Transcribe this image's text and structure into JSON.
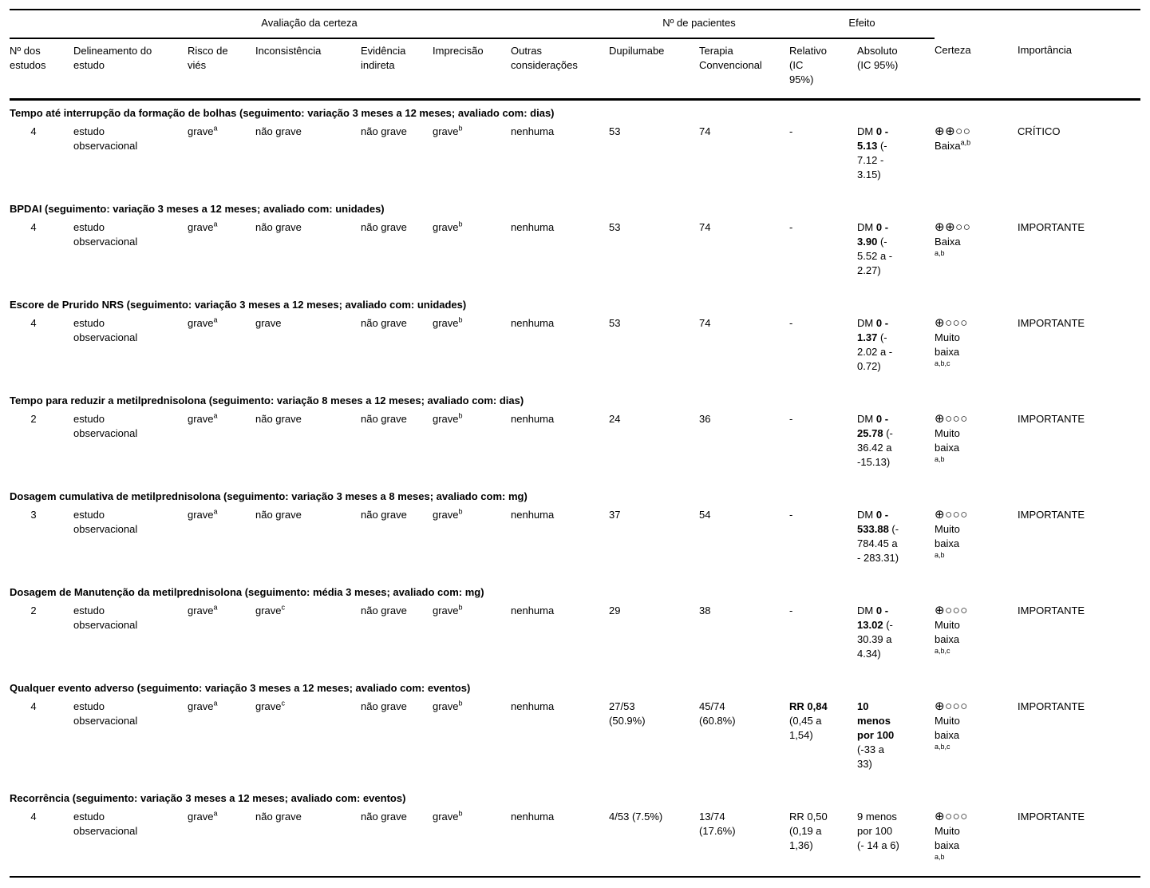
{
  "table": {
    "group_headers": {
      "certainty": "Avaliação da certeza",
      "patients": "Nº de pacientes",
      "effect": "Efeito"
    },
    "column_headers": {
      "n_studies": "Nº dos estudos",
      "design": "Delineamento do estudo",
      "risk_of_bias": "Risco de viés",
      "inconsistency": "Inconsistência",
      "indirectness": "Evidência indireta",
      "imprecision": "Imprecisão",
      "other": "Outras considerações",
      "dupilumab": "Dupilumabe",
      "conventional": "Terapia Convencional",
      "relative": "Relativo (IC 95%)",
      "absolute": "Absoluto (IC 95%)",
      "certainty": "Certeza",
      "importance": "Importância"
    },
    "sections": [
      {
        "title": "Tempo até interrupção da formação de bolhas (seguimento: variação 3 meses a 12 meses; avaliado com: dias)",
        "row": {
          "n_studies": "4",
          "design": "estudo observacional",
          "risk_of_bias": {
            "text": "grave",
            "sup": "a"
          },
          "inconsistency": {
            "text": "não grave",
            "sup": ""
          },
          "indirectness": {
            "text": "não grave",
            "sup": ""
          },
          "imprecision": {
            "text": "grave",
            "sup": "b"
          },
          "other": "nenhuma",
          "dupilumab": "53",
          "conventional": "74",
          "relative": {
            "bold": "",
            "rest": "-"
          },
          "absolute": {
            "prefix": "DM ",
            "bold": "0 - 5.13",
            "rest": " (- 7.12 - 3.15)"
          },
          "certainty": {
            "symbols": "⊕⊕○○",
            "label": "Baixa",
            "sup": "a,b",
            "sup_inline": true
          },
          "importance": "CRÍTICO"
        }
      },
      {
        "title": "BPDAI (seguimento: variação 3 meses a 12 meses; avaliado com: unidades)",
        "row": {
          "n_studies": "4",
          "design": "estudo observacional",
          "risk_of_bias": {
            "text": "grave",
            "sup": "a"
          },
          "inconsistency": {
            "text": "não grave",
            "sup": ""
          },
          "indirectness": {
            "text": "não grave",
            "sup": ""
          },
          "imprecision": {
            "text": "grave",
            "sup": "b"
          },
          "other": "nenhuma",
          "dupilumab": "53",
          "conventional": "74",
          "relative": {
            "bold": "",
            "rest": "-"
          },
          "absolute": {
            "prefix": "DM ",
            "bold": "0 - 3.90",
            "rest": " (- 5.52 a - 2.27)"
          },
          "certainty": {
            "symbols": "⊕⊕○○",
            "label": "Baixa",
            "sup": "a,b",
            "sup_inline": false
          },
          "importance": "IMPORTANTE"
        }
      },
      {
        "title": "Escore de Prurido NRS (seguimento: variação 3 meses a 12 meses; avaliado com: unidades)",
        "row": {
          "n_studies": "4",
          "design": "estudo observacional",
          "risk_of_bias": {
            "text": "grave",
            "sup": "a"
          },
          "inconsistency": {
            "text": "grave",
            "sup": ""
          },
          "indirectness": {
            "text": "não grave",
            "sup": ""
          },
          "imprecision": {
            "text": "grave",
            "sup": "b"
          },
          "other": "nenhuma",
          "dupilumab": "53",
          "conventional": "74",
          "relative": {
            "bold": "",
            "rest": "-"
          },
          "absolute": {
            "prefix": "DM ",
            "bold": "0 - 1.37",
            "rest": " (- 2.02 a - 0.72)"
          },
          "certainty": {
            "symbols": "⊕○○○",
            "label": "Muito baixa",
            "sup": "a,b,c",
            "sup_inline": false
          },
          "importance": "IMPORTANTE"
        }
      },
      {
        "title": "Tempo para reduzir a metilprednisolona (seguimento: variação 8 meses a 12 meses; avaliado com: dias)",
        "row": {
          "n_studies": "2",
          "design": "estudo observacional",
          "risk_of_bias": {
            "text": "grave",
            "sup": "a"
          },
          "inconsistency": {
            "text": "não grave",
            "sup": ""
          },
          "indirectness": {
            "text": "não grave",
            "sup": ""
          },
          "imprecision": {
            "text": "grave",
            "sup": "b"
          },
          "other": "nenhuma",
          "dupilumab": "24",
          "conventional": "36",
          "relative": {
            "bold": "",
            "rest": "-"
          },
          "absolute": {
            "prefix": "DM ",
            "bold": "0 - 25.78",
            "rest": " (- 36.42 a -15.13)"
          },
          "certainty": {
            "symbols": "⊕○○○",
            "label": "Muito baixa",
            "sup": "a,b",
            "sup_inline": false
          },
          "importance": "IMPORTANTE"
        }
      },
      {
        "title": "Dosagem cumulativa de metilprednisolona (seguimento: variação 3 meses a 8 meses; avaliado com: mg)",
        "row": {
          "n_studies": "3",
          "design": "estudo observacional",
          "risk_of_bias": {
            "text": "grave",
            "sup": "a"
          },
          "inconsistency": {
            "text": "não grave",
            "sup": ""
          },
          "indirectness": {
            "text": "não grave",
            "sup": ""
          },
          "imprecision": {
            "text": "grave",
            "sup": "b"
          },
          "other": "nenhuma",
          "dupilumab": "37",
          "conventional": "54",
          "relative": {
            "bold": "",
            "rest": "-"
          },
          "absolute": {
            "prefix": "DM ",
            "bold": "0 - 533.88",
            "rest": " (- 784.45 a - 283.31)"
          },
          "certainty": {
            "symbols": "⊕○○○",
            "label": "Muito baixa",
            "sup": "a,b",
            "sup_inline": false
          },
          "importance": "IMPORTANTE"
        }
      },
      {
        "title": "Dosagem de Manutenção da metilprednisolona (seguimento: média 3 meses; avaliado com: mg)",
        "row": {
          "n_studies": "2",
          "design": "estudo observacional",
          "risk_of_bias": {
            "text": "grave",
            "sup": "a"
          },
          "inconsistency": {
            "text": "grave",
            "sup": "c"
          },
          "indirectness": {
            "text": "não grave",
            "sup": ""
          },
          "imprecision": {
            "text": "grave",
            "sup": "b"
          },
          "other": "nenhuma",
          "dupilumab": "29",
          "conventional": "38",
          "relative": {
            "bold": "",
            "rest": "-"
          },
          "absolute": {
            "prefix": "DM ",
            "bold": "0 - 13.02",
            "rest": " (- 30.39 a 4.34)"
          },
          "certainty": {
            "symbols": "⊕○○○",
            "label": "Muito baixa",
            "sup": "a,b,c",
            "sup_inline": false
          },
          "importance": "IMPORTANTE"
        }
      },
      {
        "title": "Qualquer evento adverso (seguimento: variação 3 meses a 12 meses; avaliado com: eventos)",
        "row": {
          "n_studies": "4",
          "design": "estudo observacional",
          "risk_of_bias": {
            "text": "grave",
            "sup": "a"
          },
          "inconsistency": {
            "text": "grave",
            "sup": "c"
          },
          "indirectness": {
            "text": "não grave",
            "sup": ""
          },
          "imprecision": {
            "text": "grave",
            "sup": "b"
          },
          "other": "nenhuma",
          "dupilumab": "27/53 (50.9%)",
          "conventional": "45/74 (60.8%)",
          "relative": {
            "bold": "RR 0,84",
            "rest": " (0,45 a 1,54)"
          },
          "absolute": {
            "prefix": "",
            "bold": "10 menos por 100",
            "rest": " (-33 a 33)"
          },
          "certainty": {
            "symbols": "⊕○○○",
            "label": "Muito baixa",
            "sup": "a,b,c",
            "sup_inline": false
          },
          "importance": "IMPORTANTE"
        }
      },
      {
        "title": "Recorrência (seguimento: variação 3 meses a 12 meses; avaliado com: eventos)",
        "row": {
          "n_studies": "4",
          "design": "estudo observacional",
          "risk_of_bias": {
            "text": "grave",
            "sup": "a"
          },
          "inconsistency": {
            "text": "não grave",
            "sup": ""
          },
          "indirectness": {
            "text": "não grave",
            "sup": ""
          },
          "imprecision": {
            "text": "grave",
            "sup": "b"
          },
          "other": "nenhuma",
          "dupilumab": "4/53 (7.5%)",
          "conventional": "13/74 (17.6%)",
          "relative": {
            "bold": "",
            "rest": "RR 0,50 (0,19 a 1,36)"
          },
          "absolute": {
            "prefix": "",
            "bold": "",
            "rest": "9 menos por 100 (- 14 a 6)"
          },
          "certainty": {
            "symbols": "⊕○○○",
            "label": "Muito baixa",
            "sup": "a,b",
            "sup_inline": false
          },
          "importance": "IMPORTANTE"
        }
      }
    ]
  }
}
